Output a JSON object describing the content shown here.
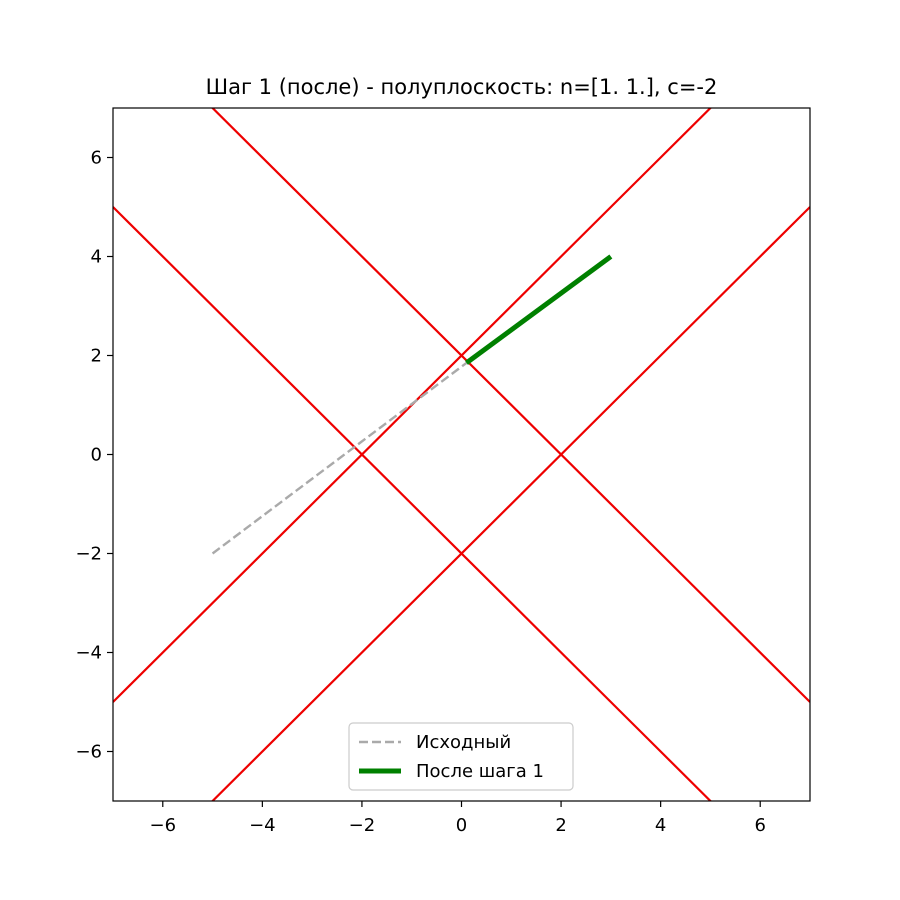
{
  "chart_data": {
    "type": "line",
    "title": "Шаг 1 (после) - полуплоскость: n=[1. 1.], c=-2",
    "xlabel": "",
    "ylabel": "",
    "xlim": [
      -7,
      7
    ],
    "ylim": [
      -7,
      7
    ],
    "x_ticks": [
      -6,
      -4,
      -2,
      0,
      2,
      4,
      6
    ],
    "y_ticks": [
      -6,
      -4,
      -2,
      0,
      2,
      4,
      6
    ],
    "x_tick_labels": [
      "−6",
      "−4",
      "−2",
      "0",
      "2",
      "4",
      "6"
    ],
    "y_tick_labels": [
      "−6",
      "−4",
      "−2",
      "0",
      "2",
      "4",
      "6"
    ],
    "grid": false,
    "legend_position": "lower center",
    "constraint_lines": {
      "color": "#ee0000",
      "lines": [
        {
          "x": [
            -7,
            7
          ],
          "y": [
            -5,
            9
          ]
        },
        {
          "x": [
            -7,
            7
          ],
          "y": [
            5,
            -9
          ]
        },
        {
          "x": [
            -7,
            7
          ],
          "y": [
            -9,
            5
          ]
        },
        {
          "x": [
            -7,
            7
          ],
          "y": [
            9,
            -5
          ]
        }
      ]
    },
    "series": [
      {
        "name": "Исходный",
        "style": "dashed",
        "color": "#aaaaaa",
        "x": [
          -5,
          0.1
        ],
        "y": [
          -2,
          1.85
        ]
      },
      {
        "name": "После шага 1",
        "style": "solid",
        "color": "#008000",
        "x": [
          0.1,
          3
        ],
        "y": [
          1.85,
          4
        ]
      }
    ]
  }
}
